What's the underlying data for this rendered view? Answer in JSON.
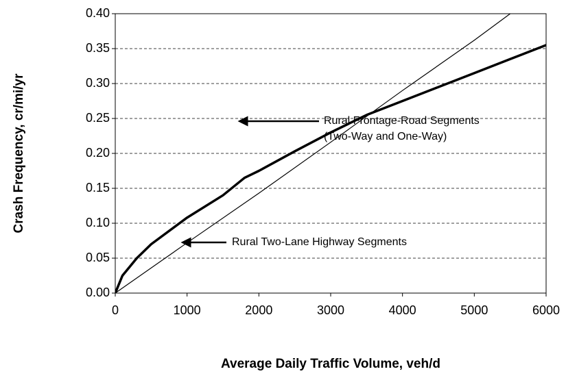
{
  "chart_data": {
    "type": "line",
    "x_label": "Average Daily Traffic Volume, veh/d",
    "y_label": "Crash Frequency, cr/mi/yr",
    "xlim": [
      0,
      6000
    ],
    "xticks": [
      0,
      1000,
      2000,
      3000,
      4000,
      5000,
      6000
    ],
    "ylim": [
      0,
      0.4
    ],
    "yticks": [
      {
        "value": 0,
        "label": "0.00"
      },
      0.05,
      {
        "value": 0.1,
        "label": "0.10"
      },
      0.15,
      {
        "value": 0.2,
        "label": "0.20"
      },
      0.25,
      {
        "value": 0.3,
        "label": "0.30"
      },
      0.35,
      {
        "value": 0.4,
        "label": "0.40"
      }
    ],
    "grid": true,
    "series": [
      {
        "color": "#000000",
        "width": 3.5,
        "x": [
          0,
          100,
          300,
          500,
          1000,
          1500,
          1800,
          2000,
          2500,
          3000,
          3500,
          4000,
          4500,
          5000,
          5500,
          6000
        ],
        "values": [
          0,
          0.025,
          0.05,
          0.07,
          0.108,
          0.14,
          0.165,
          0.175,
          0.203,
          0.23,
          0.255,
          0.275,
          0.295,
          0.315,
          0.335,
          0.355
        ]
      },
      {
        "color": "#000000",
        "width": 1.2,
        "x": [
          0,
          1000,
          2000,
          3000,
          4000,
          5000,
          5500
        ],
        "values": [
          0,
          0.072,
          0.143,
          0.216,
          0.29,
          0.362,
          0.4
        ]
      }
    ],
    "annotations": [
      {
        "lines": [
          "Rural Frontage-Road Segments",
          "(Two-Way and One-Way)"
        ]
      },
      {
        "lines": [
          "Rural Two-Lane Highway Segments"
        ]
      }
    ]
  }
}
